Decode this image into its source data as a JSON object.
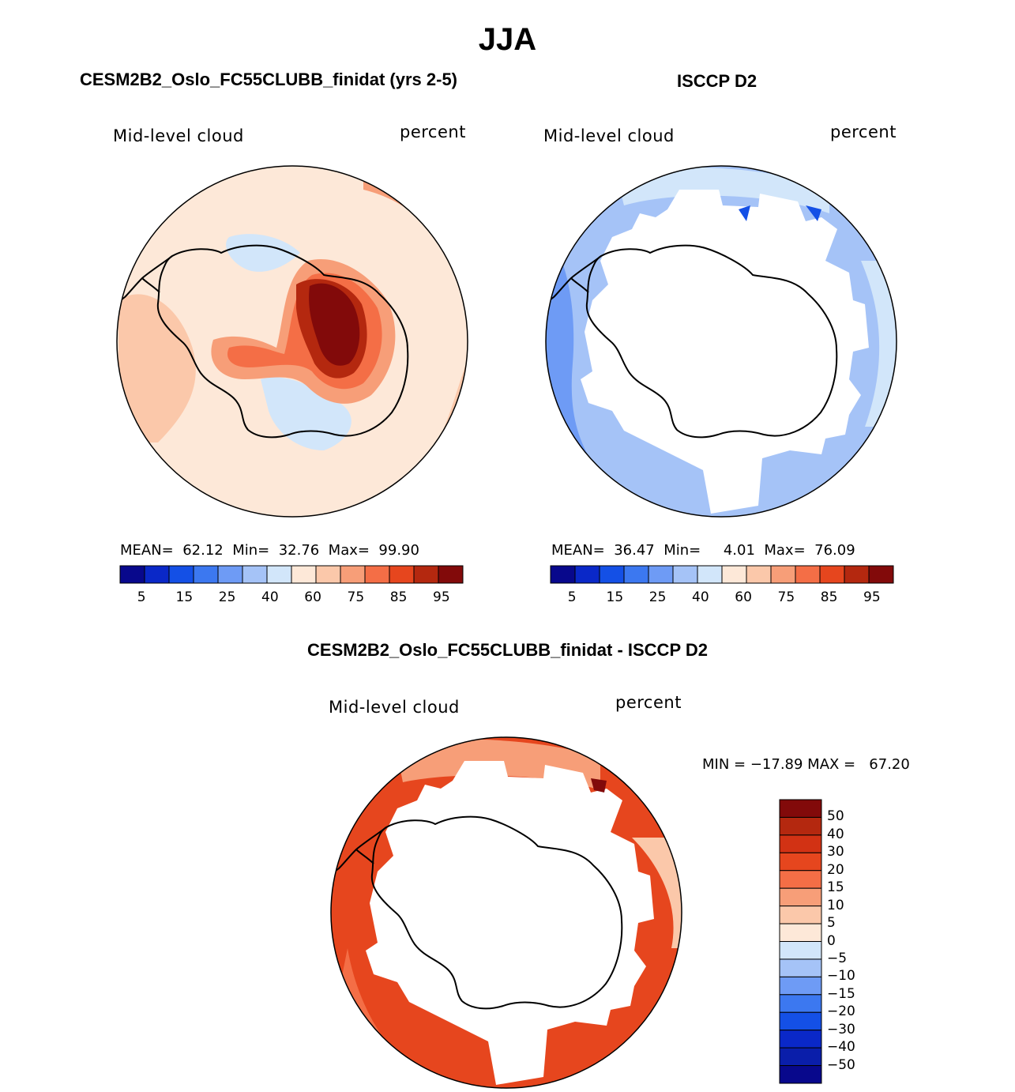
{
  "page": {
    "title": "JJA",
    "diff_title": "CESM2B2_Oslo_FC55CLUBB_finidat - ISCCP D2"
  },
  "palette": {
    "abs_colors": [
      "#08088c",
      "#0a28c8",
      "#1450e6",
      "#3c78f0",
      "#6e9bf5",
      "#a5c3f7",
      "#d2e6fa",
      "#fde8d8",
      "#fbc8aa",
      "#f79e78",
      "#f46e46",
      "#e6461e",
      "#b4280f",
      "#820a0a"
    ],
    "diff_colors": [
      "#08088c",
      "#0a28c8",
      "#1450e6",
      "#3c78f0",
      "#6e9bf5",
      "#a5c3f7",
      "#d2e6fa",
      "#fde8d8",
      "#fbc8aa",
      "#f79e78",
      "#f46e46",
      "#e6461e",
      "#b4280f",
      "#820a0a"
    ]
  },
  "chart_data": [
    {
      "type": "heatmap",
      "panel": "model",
      "title": "CESM2B2_Oslo_FC55CLUBB_finidat (yrs 2-5)",
      "left_label": "Mid-level cloud",
      "right_label": "percent",
      "stats": {
        "mean_label": "MEAN=",
        "mean": "62.12",
        "min_label": "Min=",
        "min": "32.76",
        "max_label": "Max=",
        "max": "99.90"
      },
      "colorbar_ticks": [
        "5",
        "15",
        "25",
        "40",
        "60",
        "75",
        "85",
        "95"
      ]
    },
    {
      "type": "heatmap",
      "panel": "obs",
      "title": "ISCCP D2",
      "left_label": "Mid-level cloud",
      "right_label": "percent",
      "stats": {
        "mean_label": "MEAN=",
        "mean": "36.47",
        "min_label": "Min=",
        "min": "4.01",
        "max_label": "Max=",
        "max": "76.09"
      },
      "colorbar_ticks": [
        "5",
        "15",
        "25",
        "40",
        "60",
        "75",
        "85",
        "95"
      ]
    },
    {
      "type": "heatmap",
      "panel": "difference",
      "left_label": "Mid-level cloud",
      "right_label": "percent",
      "minmax_text": "MIN = −17.89 MAX =   67.20",
      "colorbar_ticks": [
        "50",
        "40",
        "30",
        "20",
        "15",
        "10",
        "5",
        "0",
        "−5",
        "−10",
        "−15",
        "−20",
        "−30",
        "−40",
        "−50"
      ]
    }
  ]
}
